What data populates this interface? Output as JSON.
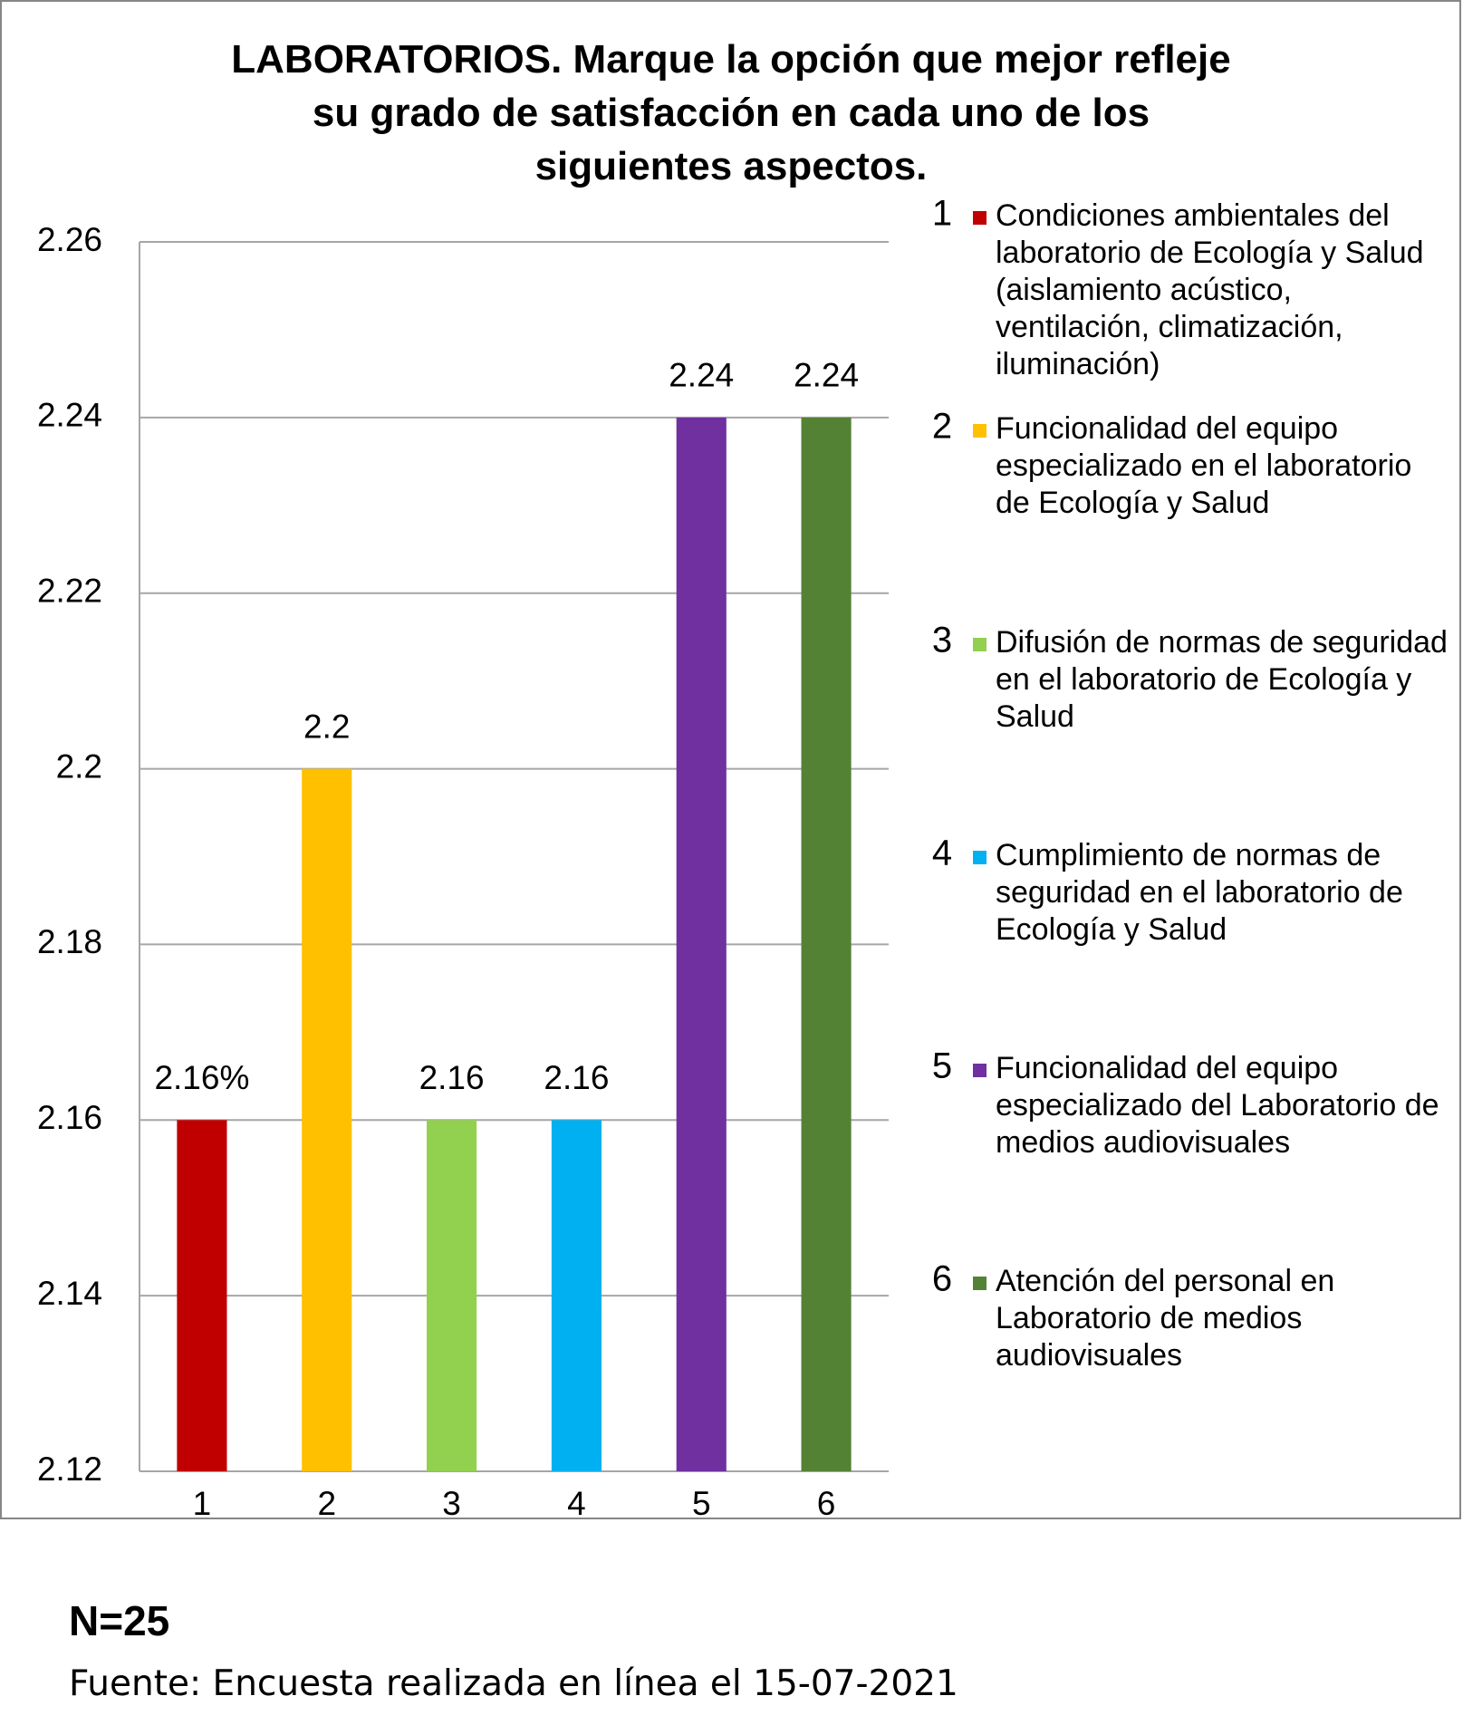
{
  "chart_data": {
    "type": "bar",
    "title": "LABORATORIOS. Marque la opción que mejor refleje su grado de satisfacción en cada uno de los siguientes aspectos.",
    "categories": [
      "1",
      "2",
      "3",
      "4",
      "5",
      "6"
    ],
    "values": [
      2.16,
      2.2,
      2.16,
      2.16,
      2.24,
      2.24
    ],
    "value_labels": [
      "2.16%",
      "2.2",
      "2.16",
      "2.16",
      "2.24",
      "2.24"
    ],
    "colors": [
      "#c00000",
      "#ffc000",
      "#92d050",
      "#00b0f0",
      "#7030a0",
      "#548235"
    ],
    "legend_labels": [
      "Condiciones ambientales del laboratorio de Ecología y Salud (aislamiento acústico, ventilación, climatización, iluminación)",
      "Funcionalidad del equipo especializado en el laboratorio de Ecología y Salud",
      "Difusión de normas de seguridad en el laboratorio de Ecología y Salud",
      "Cumplimiento de normas de seguridad en el laboratorio de Ecología y Salud",
      "Funcionalidad del equipo especializado del Laboratorio de medios audiovisuales",
      "Atención del personal en Laboratorio de medios audiovisuales"
    ],
    "ylim": [
      2.12,
      2.26
    ],
    "yticks": [
      2.12,
      2.14,
      2.16,
      2.18,
      2.2,
      2.22,
      2.24,
      2.26
    ],
    "grid": true
  },
  "footer": {
    "n": "N=25",
    "source": "Fuente: Encuesta realizada en línea el 15-07-2021"
  }
}
